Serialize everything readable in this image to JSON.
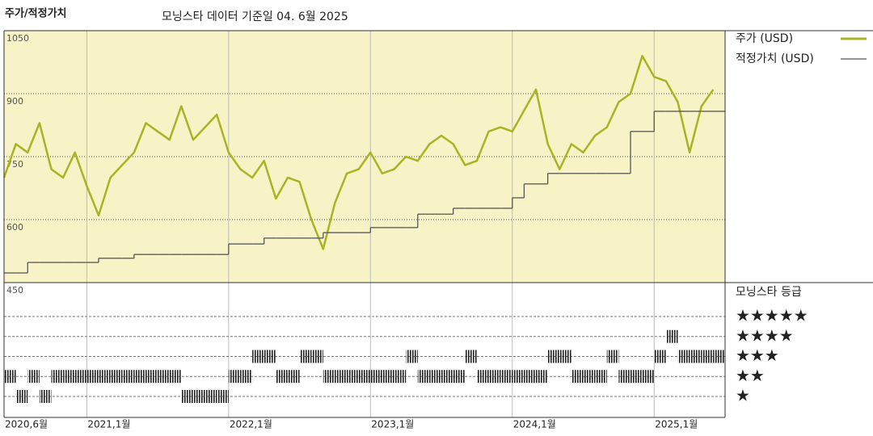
{
  "chart_data": {
    "type": "line",
    "title": "주가/적정가치",
    "subtitle": "모닝스타 데이터 기준일 04. 6월 2025",
    "x": [
      "2020-06",
      "2020-07",
      "2020-08",
      "2020-09",
      "2020-10",
      "2020-11",
      "2020-12",
      "2021-01",
      "2021-02",
      "2021-03",
      "2021-04",
      "2021-05",
      "2021-06",
      "2021-07",
      "2021-08",
      "2021-09",
      "2021-10",
      "2021-11",
      "2021-12",
      "2022-01",
      "2022-02",
      "2022-03",
      "2022-04",
      "2022-05",
      "2022-06",
      "2022-07",
      "2022-08",
      "2022-09",
      "2022-10",
      "2022-11",
      "2022-12",
      "2023-01",
      "2023-02",
      "2023-03",
      "2023-04",
      "2023-05",
      "2023-06",
      "2023-07",
      "2023-08",
      "2023-09",
      "2023-10",
      "2023-11",
      "2023-12",
      "2024-01",
      "2024-02",
      "2024-03",
      "2024-04",
      "2024-05",
      "2024-06",
      "2024-07",
      "2024-08",
      "2024-09",
      "2024-10",
      "2024-11",
      "2024-12",
      "2025-01",
      "2025-02",
      "2025-03",
      "2025-04",
      "2025-05",
      "2025-06"
    ],
    "series": [
      {
        "name": "주가 (USD)",
        "color": "#a9b324",
        "values": [
          700,
          780,
          760,
          830,
          720,
          700,
          760,
          680,
          610,
          700,
          730,
          760,
          830,
          810,
          790,
          870,
          790,
          820,
          850,
          760,
          720,
          700,
          740,
          650,
          700,
          690,
          600,
          530,
          640,
          710,
          720,
          760,
          710,
          720,
          750,
          740,
          780,
          800,
          780,
          730,
          740,
          810,
          820,
          810,
          860,
          910,
          780,
          720,
          780,
          760,
          800,
          820,
          880,
          900,
          990,
          940,
          930,
          880,
          760,
          870,
          910
        ]
      },
      {
        "name": "적정가치 (USD)",
        "color": "#555555",
        "step": true,
        "values": [
          473,
          473,
          498,
          498,
          498,
          498,
          498,
          498,
          508,
          508,
          508,
          517,
          517,
          517,
          517,
          517,
          517,
          517,
          517,
          542,
          542,
          542,
          556,
          556,
          556,
          556,
          556,
          569,
          569,
          569,
          569,
          581,
          581,
          581,
          581,
          613,
          613,
          613,
          627,
          627,
          627,
          627,
          627,
          652,
          685,
          685,
          710,
          710,
          710,
          710,
          710,
          710,
          710,
          810,
          810,
          858,
          858,
          858,
          858,
          858,
          858
        ]
      }
    ],
    "xlim": [
      "2020-06",
      "2025-07"
    ],
    "xticks": [
      {
        "value": "2020-06",
        "label": "2020,6월"
      },
      {
        "value": "2021-01",
        "label": "2021,1월"
      },
      {
        "value": "2022-01",
        "label": "2022,1월"
      },
      {
        "value": "2023-01",
        "label": "2023,1월"
      },
      {
        "value": "2024-01",
        "label": "2024,1월"
      },
      {
        "value": "2025-01",
        "label": "2025,1월"
      }
    ],
    "ylim": [
      450,
      1050
    ],
    "yticks": [
      1050,
      900,
      750,
      600,
      450
    ],
    "grid": true,
    "ratings": {
      "title": "모닝스타 등급",
      "levels": [
        "★",
        "★★",
        "★★★",
        "★★★★",
        "★★★★★"
      ],
      "values": [
        2,
        1,
        2,
        1,
        2,
        2,
        2,
        2,
        2,
        2,
        2,
        2,
        2,
        2,
        2,
        1,
        1,
        1,
        1,
        2,
        2,
        3,
        3,
        2,
        2,
        3,
        3,
        2,
        2,
        2,
        2,
        2,
        2,
        2,
        3,
        2,
        2,
        2,
        2,
        3,
        2,
        2,
        2,
        2,
        2,
        2,
        3,
        3,
        2,
        2,
        2,
        3,
        2,
        2,
        2,
        3,
        4,
        3,
        3,
        3,
        3
      ]
    }
  }
}
